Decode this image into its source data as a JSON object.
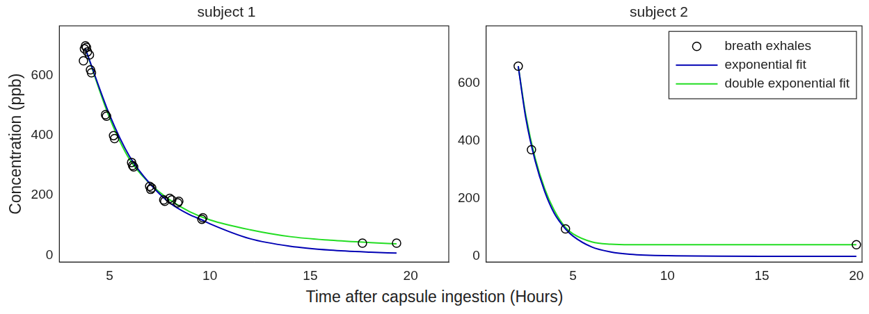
{
  "xlabel": "Time after capsule ingestion (Hours)",
  "chart_data": [
    {
      "type": "scatter",
      "title": "subject 1",
      "ylabel": "Concentration (ppb)",
      "xlim": [
        2.5,
        21.9
      ],
      "xticks": [
        5,
        10,
        15,
        20
      ],
      "ylim": [
        -23,
        767
      ],
      "yticks": [
        0,
        200,
        400,
        600
      ],
      "grid": false,
      "series": [
        {
          "name": "breath exhales",
          "color": "#000000",
          "marker": "circle",
          "x": [
            3.7,
            3.75,
            3.8,
            3.85,
            3.9,
            4.0,
            4.05,
            4.1,
            4.8,
            4.85,
            5.2,
            5.25,
            6.1,
            6.15,
            6.2,
            7.0,
            7.05,
            7.1,
            7.7,
            7.75,
            8.0,
            8.1,
            8.4,
            8.45,
            9.6,
            9.65,
            17.6,
            19.3
          ],
          "values": [
            650,
            690,
            700,
            695,
            680,
            670,
            620,
            610,
            470,
            465,
            400,
            390,
            310,
            300,
            295,
            230,
            220,
            225,
            185,
            180,
            190,
            185,
            175,
            180,
            120,
            125,
            40,
            40
          ]
        },
        {
          "name": "exponential fit",
          "color": "#0000b4",
          "line_style": "solid",
          "x": [
            3.8,
            5,
            6,
            7,
            8,
            9,
            9.6,
            10,
            12,
            14,
            16,
            18,
            19.3
          ],
          "values": [
            690,
            470,
            330,
            240,
            175,
            135,
            118,
            105,
            55,
            30,
            17,
            10,
            7
          ]
        },
        {
          "name": "double exponential fit",
          "color": "#22dd22",
          "line_style": "solid",
          "x": [
            3.8,
            5,
            6,
            7,
            8,
            9,
            10,
            12,
            14,
            16,
            18,
            19.3
          ],
          "values": [
            690,
            460,
            320,
            240,
            185,
            145,
            118,
            85,
            62,
            50,
            42,
            38
          ]
        }
      ]
    },
    {
      "type": "scatter",
      "title": "subject 2",
      "xlim": [
        0.4,
        20.3
      ],
      "xticks": [
        5,
        10,
        15,
        20
      ],
      "ylim": [
        -20,
        800
      ],
      "yticks": [
        0,
        200,
        400,
        600
      ],
      "grid": false,
      "legend": "upper right",
      "series": [
        {
          "name": "breath exhales",
          "color": "#000000",
          "marker": "circle",
          "x": [
            2.1,
            2.8,
            4.6,
            20
          ],
          "values": [
            660,
            370,
            95,
            40
          ]
        },
        {
          "name": "exponential fit",
          "color": "#0000b4",
          "line_style": "solid",
          "x": [
            2.1,
            2.5,
            3,
            3.5,
            4,
            4.6,
            5,
            6,
            7,
            8,
            10,
            15,
            20
          ],
          "values": [
            660,
            480,
            330,
            225,
            150,
            95,
            70,
            32,
            15,
            7,
            2,
            0,
            0
          ]
        },
        {
          "name": "double exponential fit",
          "color": "#22dd22",
          "line_style": "solid",
          "x": [
            2.1,
            2.5,
            3,
            3.5,
            4,
            4.6,
            5,
            6,
            7,
            8,
            10,
            15,
            20
          ],
          "values": [
            660,
            490,
            340,
            235,
            160,
            100,
            78,
            50,
            42,
            40,
            40,
            40,
            40
          ]
        }
      ]
    }
  ]
}
